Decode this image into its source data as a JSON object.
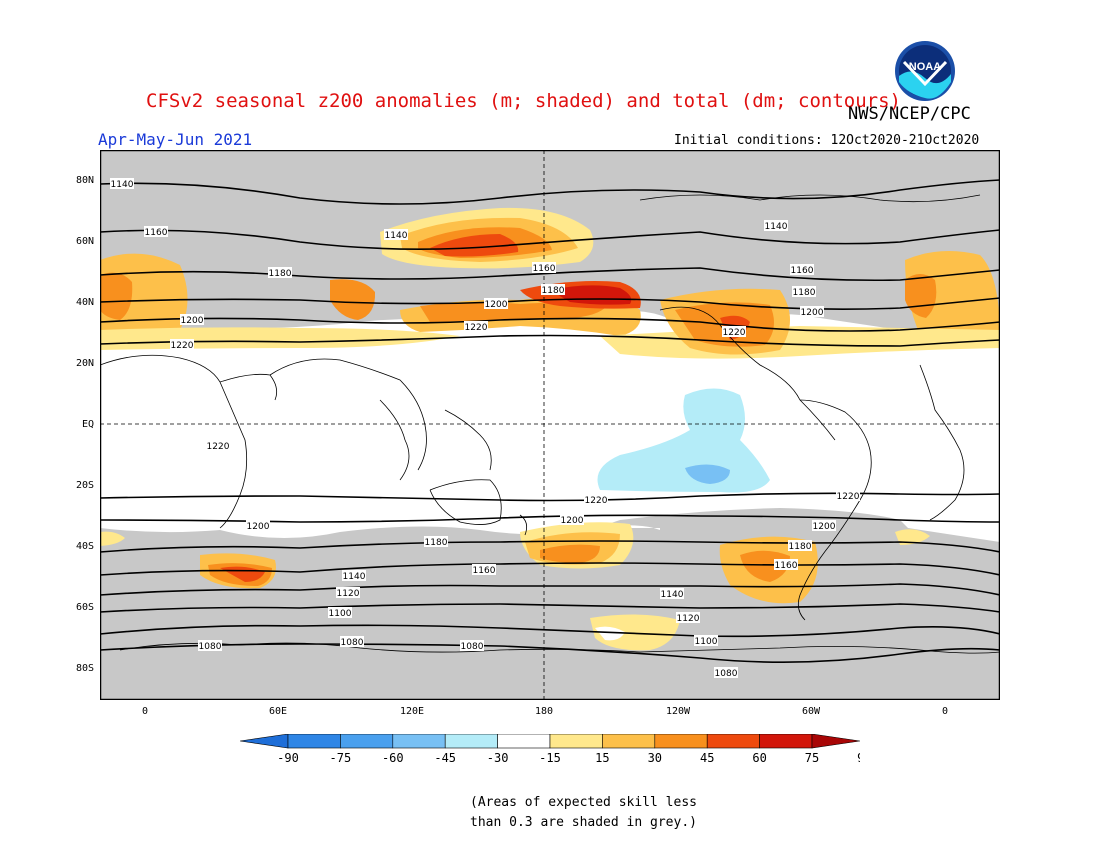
{
  "title": "CFSv2 seasonal z200 anomalies (m; shaded) and total (dm; contours)",
  "agency": "NWS/NCEP/CPC",
  "period": "Apr-May-Jun 2021",
  "initial_conditions": "Initial conditions: 12Oct2020-21Oct2020",
  "lat_labels": [
    "80N",
    "60N",
    "40N",
    "20N",
    "EQ",
    "20S",
    "40S",
    "60S",
    "80S"
  ],
  "lon_labels": [
    "0",
    "60E",
    "120E",
    "180",
    "120W",
    "60W",
    "0"
  ],
  "contour_labels": [
    "1140",
    "1160",
    "1180",
    "1200",
    "1220",
    "1140",
    "1180",
    "1200",
    "1220",
    "1160",
    "1180",
    "1200",
    "1220",
    "1140",
    "1160",
    "1180",
    "1200",
    "1220",
    "1160",
    "1180",
    "1200",
    "1220",
    "1220",
    "1200",
    "1180",
    "1160",
    "1140",
    "1120",
    "1100",
    "1080",
    "1220",
    "1200",
    "1180",
    "1160",
    "1140",
    "1120",
    "1100",
    "1080",
    "1220",
    "1200",
    "1180",
    "1160",
    "1140",
    "1120",
    "1100",
    "1080"
  ],
  "colorbar": {
    "labels": [
      "-90",
      "-75",
      "-60",
      "-45",
      "-30",
      "-15",
      "15",
      "30",
      "45",
      "60",
      "75",
      "90"
    ],
    "colors": [
      "#1e6ed8",
      "#2f86e6",
      "#4aa0ee",
      "#78c0f4",
      "#b4ecf8",
      "#ffffff",
      "#ffe88c",
      "#fdc04a",
      "#f8901e",
      "#ee4a0e",
      "#d2160a",
      "#a80606"
    ]
  },
  "note_line1": "(Areas of expected skill less",
  "note_line2": "than 0.3 are shaded in grey.)",
  "legend_colors": {
    "grey": "#c8c8c8",
    "title_red": "#e01010",
    "period_blue": "#1a3ad8"
  }
}
